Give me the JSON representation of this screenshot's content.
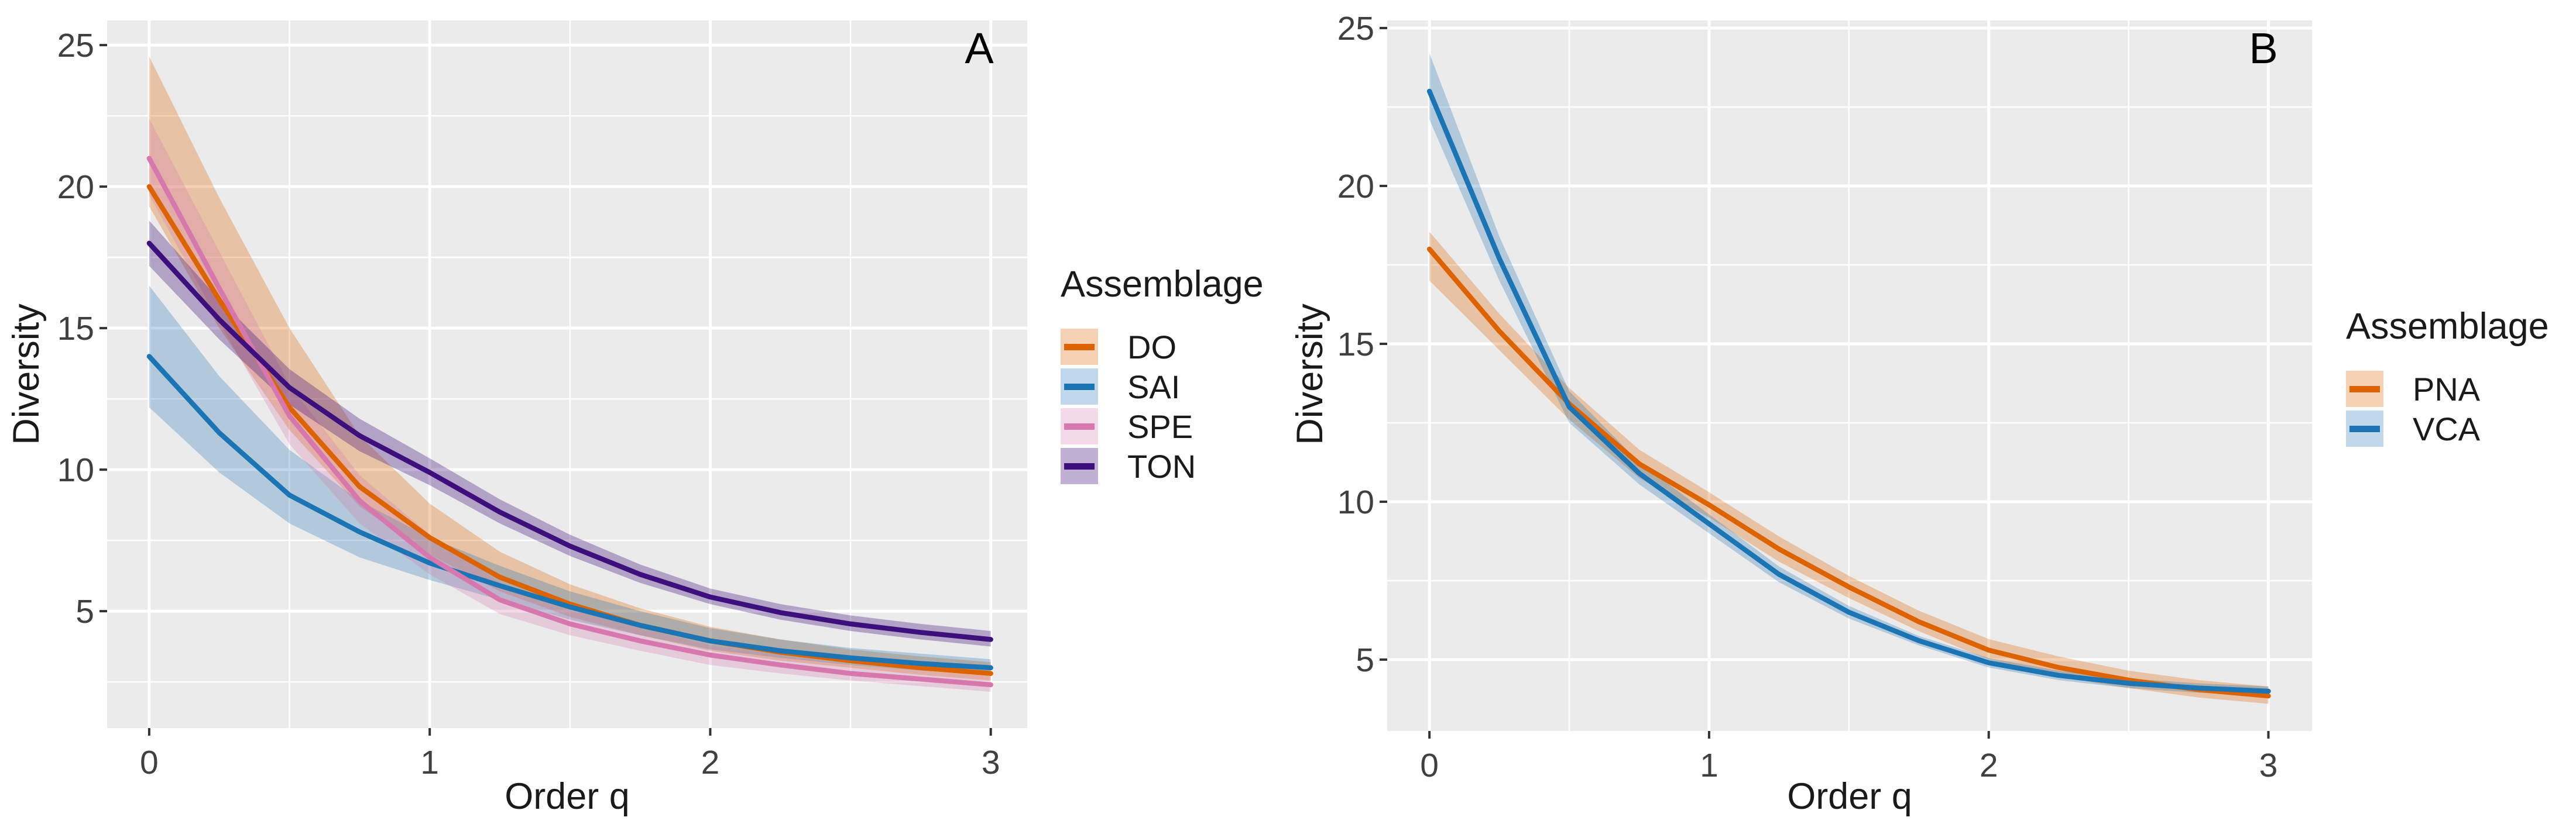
{
  "figure": {
    "background": "#ffffff",
    "panel_background": "#ebebeb",
    "gridline_color": "#ffffff",
    "tick_color": "#333333",
    "tick_label_color": "#404040",
    "text_color": "#1a1a1a"
  },
  "chart_data": [
    {
      "type": "line",
      "panel_label": "A",
      "xlabel": "Order q",
      "ylabel": "Diversity",
      "legend_title": "Assemblage",
      "legend_position": "right",
      "grid": true,
      "x": [
        0,
        0.25,
        0.5,
        0.75,
        1,
        1.25,
        1.5,
        1.75,
        2,
        2.25,
        2.5,
        2.75,
        3
      ],
      "xticks": [
        0,
        1,
        2,
        3
      ],
      "yticks": [
        5,
        10,
        15,
        20,
        25
      ],
      "xlim": [
        -0.15,
        3.13
      ],
      "ylim": [
        0.87,
        25.87
      ],
      "series": [
        {
          "name": "DO",
          "color": "#dd6300",
          "ribbon_color": "rgba(221,99,0,0.30)",
          "values": [
            20.0,
            16.0,
            12.2,
            9.4,
            7.6,
            6.2,
            5.25,
            4.5,
            3.95,
            3.55,
            3.25,
            3.0,
            2.8
          ],
          "ci_upper": [
            24.6,
            19.6,
            15.0,
            11.2,
            8.8,
            7.1,
            5.95,
            5.1,
            4.45,
            4.0,
            3.65,
            3.4,
            3.2
          ],
          "ci_lower": [
            19.3,
            15.0,
            11.4,
            8.7,
            7.0,
            5.7,
            4.8,
            4.15,
            3.6,
            3.25,
            3.0,
            2.75,
            2.55
          ]
        },
        {
          "name": "SAI",
          "color": "#1b74b4",
          "ribbon_color": "rgba(27,116,180,0.28)",
          "values": [
            14.0,
            11.3,
            9.1,
            7.8,
            6.7,
            5.9,
            5.15,
            4.5,
            3.95,
            3.6,
            3.35,
            3.15,
            3.0
          ],
          "ci_upper": [
            16.5,
            13.3,
            10.7,
            8.9,
            7.6,
            6.6,
            5.7,
            5.0,
            4.4,
            4.0,
            3.7,
            3.5,
            3.3
          ],
          "ci_lower": [
            12.2,
            9.9,
            8.1,
            6.9,
            6.1,
            5.4,
            4.7,
            4.15,
            3.65,
            3.35,
            3.1,
            2.9,
            2.75
          ]
        },
        {
          "name": "SPE",
          "color": "#d678ae",
          "ribbon_color": "rgba(214,120,174,0.28)",
          "values": [
            21.0,
            16.4,
            11.9,
            8.9,
            6.9,
            5.4,
            4.55,
            3.95,
            3.45,
            3.1,
            2.8,
            2.6,
            2.4
          ],
          "ci_upper": [
            22.4,
            17.7,
            13.0,
            9.8,
            7.7,
            6.0,
            5.05,
            4.4,
            3.8,
            3.45,
            3.1,
            2.9,
            2.7
          ],
          "ci_lower": [
            19.7,
            15.2,
            10.9,
            8.1,
            6.3,
            4.9,
            4.15,
            3.6,
            3.1,
            2.8,
            2.55,
            2.35,
            2.15
          ]
        },
        {
          "name": "TON",
          "color": "#3d0f7d",
          "ribbon_color": "rgba(61,15,125,0.33)",
          "values": [
            18.0,
            15.3,
            12.9,
            11.2,
            9.9,
            8.5,
            7.3,
            6.3,
            5.5,
            4.95,
            4.55,
            4.25,
            4.0
          ],
          "ci_upper": [
            18.8,
            16.0,
            13.55,
            11.8,
            10.4,
            8.95,
            7.7,
            6.65,
            5.8,
            5.25,
            4.85,
            4.55,
            4.3
          ],
          "ci_lower": [
            17.2,
            14.6,
            12.3,
            10.65,
            9.45,
            8.1,
            6.95,
            6.0,
            5.25,
            4.7,
            4.3,
            4.0,
            3.75
          ]
        }
      ]
    },
    {
      "type": "line",
      "panel_label": "B",
      "xlabel": "Order q",
      "ylabel": "Diversity",
      "legend_title": "Assemblage",
      "legend_position": "right",
      "grid": true,
      "x": [
        0,
        0.25,
        0.5,
        0.75,
        1,
        1.25,
        1.5,
        1.75,
        2,
        2.25,
        2.5,
        2.75,
        3
      ],
      "xticks": [
        0,
        1,
        2,
        3
      ],
      "yticks": [
        5,
        10,
        15,
        20,
        25
      ],
      "xlim": [
        -0.151,
        3.156
      ],
      "ylim": [
        2.74,
        25.24
      ],
      "series": [
        {
          "name": "PNA",
          "color": "#dd6300",
          "ribbon_color": "rgba(221,99,0,0.30)",
          "values": [
            18.0,
            15.4,
            13.1,
            11.2,
            9.9,
            8.5,
            7.3,
            6.2,
            5.3,
            4.75,
            4.35,
            4.05,
            3.85
          ],
          "ci_upper": [
            18.55,
            15.95,
            13.6,
            11.65,
            10.3,
            8.9,
            7.65,
            6.55,
            5.65,
            5.1,
            4.65,
            4.35,
            4.15
          ],
          "ci_lower": [
            17.0,
            14.8,
            12.6,
            10.75,
            9.5,
            8.1,
            6.95,
            5.9,
            5.0,
            4.45,
            4.1,
            3.8,
            3.6
          ]
        },
        {
          "name": "VCA",
          "color": "#1b74b4",
          "ribbon_color": "rgba(27,116,180,0.28)",
          "values": [
            23.0,
            17.7,
            13.0,
            10.9,
            9.3,
            7.7,
            6.5,
            5.6,
            4.9,
            4.5,
            4.25,
            4.1,
            4.0
          ],
          "ci_upper": [
            24.2,
            18.4,
            13.5,
            11.25,
            9.6,
            7.95,
            6.7,
            5.75,
            5.05,
            4.65,
            4.4,
            4.25,
            4.15
          ],
          "ci_lower": [
            22.1,
            17.0,
            12.5,
            10.55,
            9.0,
            7.45,
            6.3,
            5.45,
            4.75,
            4.35,
            4.1,
            3.95,
            3.85
          ]
        }
      ]
    }
  ]
}
